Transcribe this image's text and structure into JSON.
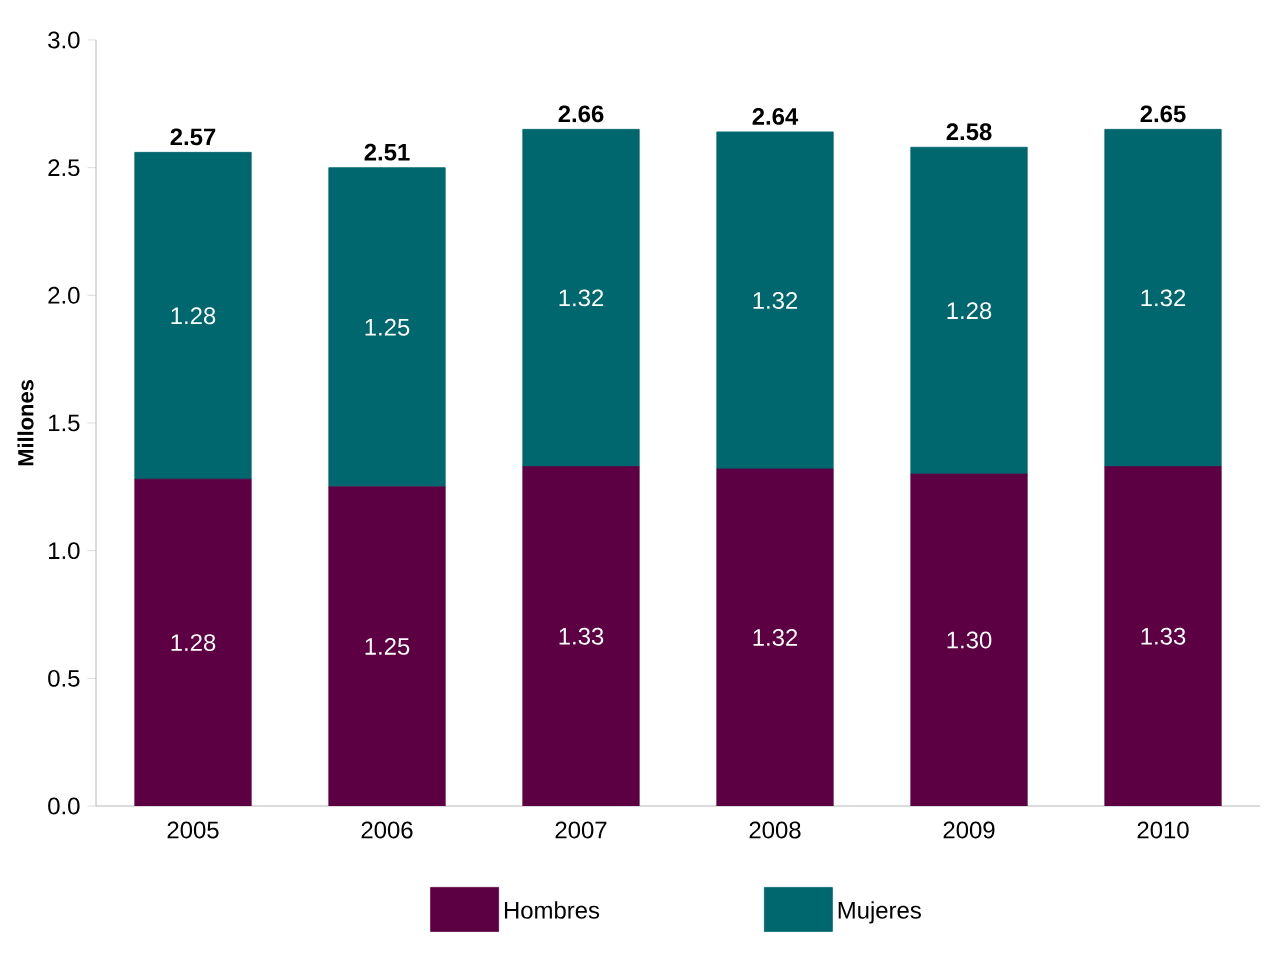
{
  "chart_data": {
    "type": "bar",
    "stacked": true,
    "ylabel": "Millones",
    "categories": [
      "2005",
      "2006",
      "2007",
      "2008",
      "2009",
      "2010"
    ],
    "series": [
      {
        "name": "Hombres",
        "color": "#5c0043",
        "values": [
          1.28,
          1.25,
          1.33,
          1.32,
          1.3,
          1.33
        ],
        "value_labels": [
          "1.28",
          "1.25",
          "1.33",
          "1.32",
          "1.30",
          "1.33"
        ]
      },
      {
        "name": "Mujeres",
        "color": "#00676f",
        "values": [
          1.28,
          1.25,
          1.32,
          1.32,
          1.28,
          1.32
        ],
        "value_labels": [
          "1.28",
          "1.25",
          "1.32",
          "1.32",
          "1.28",
          "1.32"
        ]
      }
    ],
    "totals": [
      "2.57",
      "2.51",
      "2.66",
      "2.64",
      "2.58",
      "2.65"
    ],
    "ylim": [
      0,
      3
    ],
    "yticks": [
      {
        "value": 0,
        "label": "0.0"
      },
      {
        "value": 0.5,
        "label": "0.5"
      },
      {
        "value": 1,
        "label": "1.0"
      },
      {
        "value": 1.5,
        "label": "1.5"
      },
      {
        "value": 2,
        "label": "2.0"
      },
      {
        "value": 2.5,
        "label": "2.5"
      },
      {
        "value": 3,
        "label": "3.0"
      }
    ],
    "grid": false,
    "legend": "bottom"
  }
}
